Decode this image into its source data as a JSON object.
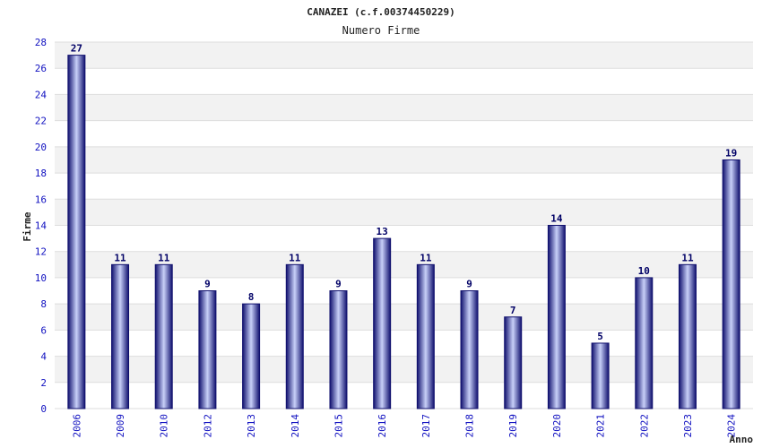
{
  "chart_data": {
    "type": "bar",
    "title": "CANAZEI (c.f.00374450229)",
    "subtitle": "Numero Firme",
    "xlabel": "Anno",
    "ylabel": "Firme",
    "categories": [
      "2006",
      "2009",
      "2010",
      "2012",
      "2013",
      "2014",
      "2015",
      "2016",
      "2017",
      "2018",
      "2019",
      "2020",
      "2021",
      "2022",
      "2023",
      "2024"
    ],
    "values": [
      27,
      11,
      11,
      9,
      8,
      11,
      9,
      13,
      11,
      9,
      7,
      14,
      5,
      10,
      11,
      19
    ],
    "ylim": [
      0,
      28
    ],
    "yticks": [
      0,
      2,
      4,
      6,
      8,
      10,
      12,
      14,
      16,
      18,
      20,
      22,
      24,
      26,
      28
    ],
    "grid": true,
    "data_labels": true,
    "colors": {
      "bar_dark": "#10106e",
      "bar_light": "#c8d0f8",
      "band": "#f2f2f2",
      "tick_text": "#1010c0",
      "label_text": "#000066"
    }
  }
}
